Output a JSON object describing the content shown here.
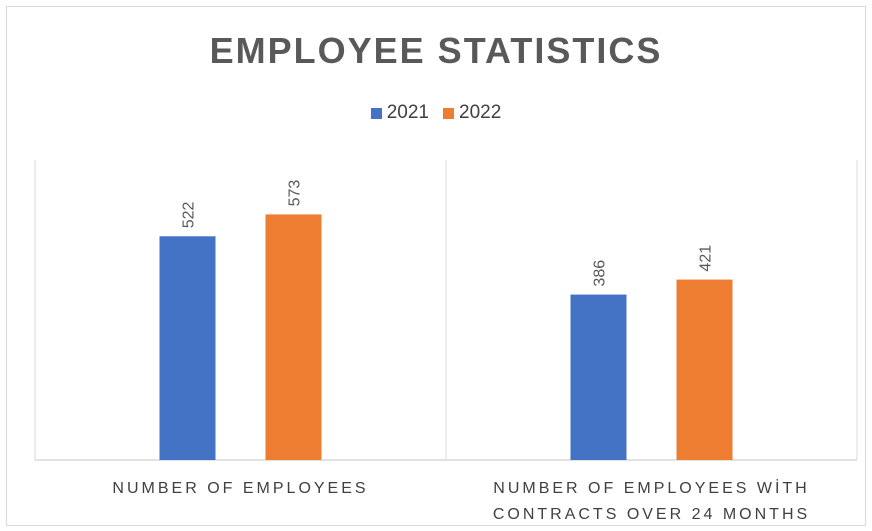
{
  "colors": {
    "series_2021": "#4472c4",
    "series_2022": "#ed7d31",
    "axis": "#d9d9d9"
  },
  "chart_data": {
    "type": "bar",
    "title": "EMPLOYEE STATISTICS",
    "categories": [
      [
        "NUMBER OF EMPLOYEES"
      ],
      [
        "NUMBER OF EMPLOYEES WİTH",
        "CONTRACTS OVER 24 MONTHS"
      ]
    ],
    "series": [
      {
        "name": "2021",
        "values": [
          522,
          386
        ]
      },
      {
        "name": "2022",
        "values": [
          573,
          421
        ]
      }
    ],
    "ylim": [
      0,
      700
    ],
    "legend_position": "top",
    "grid": false,
    "data_labels": true,
    "xlabel": "",
    "ylabel": ""
  }
}
